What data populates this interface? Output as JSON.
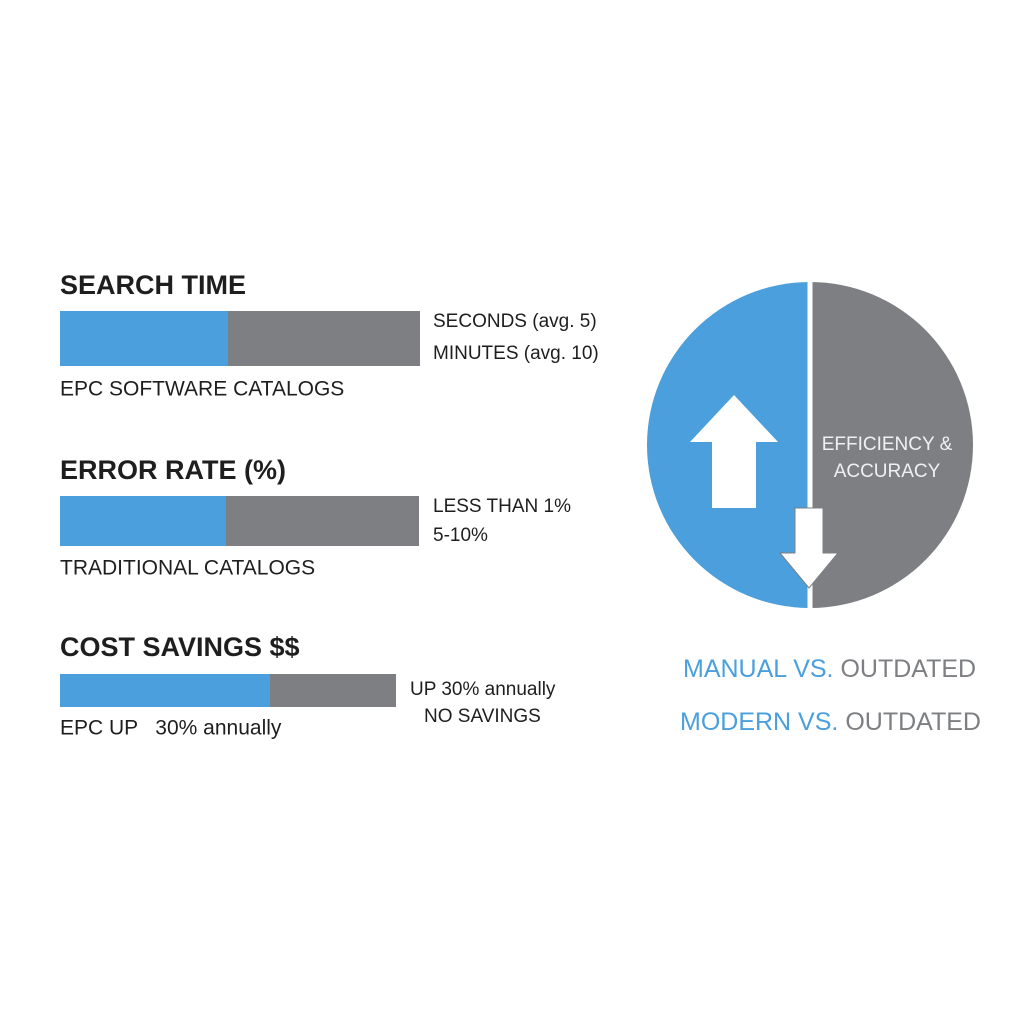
{
  "metrics": [
    {
      "title": "SEARCH TIME",
      "labels": [
        "SECONDS (avg. 5)",
        "MINUTES (avg. 10)"
      ],
      "caption": "EPC SOFTWARE CATALOGS"
    },
    {
      "title": "ERROR RATE (%)",
      "labels": [
        "LESS THAN 1%",
        "5-10%"
      ],
      "caption": "TRADITIONAL CATALOGS"
    },
    {
      "title": "COST SAVINGS $$",
      "labels": [
        "UP 30% annually",
        "NO SAVINGS"
      ],
      "caption": "EPC UP   30% annually"
    }
  ],
  "circle": {
    "label_lines": [
      "EFFICIENCY &",
      "ACCURACY"
    ]
  },
  "comparisons": [
    [
      "MANUAL VS.",
      "OUTDATED"
    ],
    [
      "MODERN VS.",
      "OUTDATED"
    ]
  ]
}
